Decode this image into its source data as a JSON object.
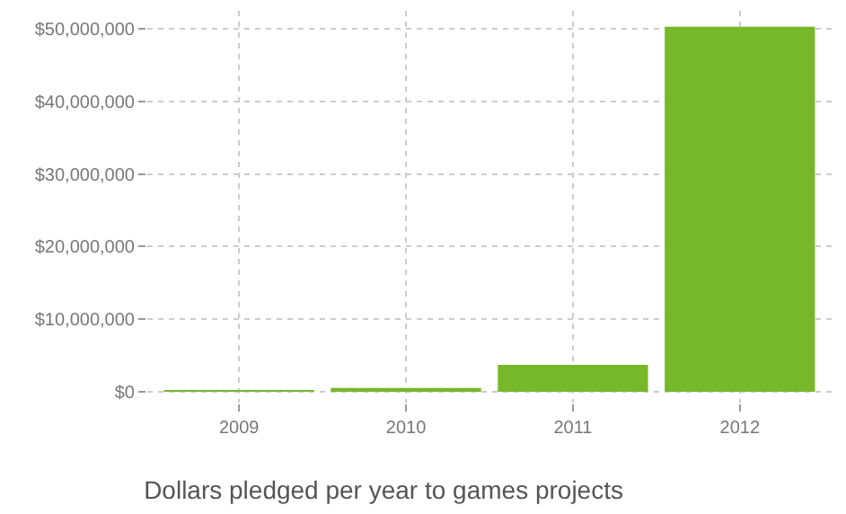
{
  "chart_data": {
    "type": "bar",
    "title": "Dollars pledged per year to games projects",
    "categories": [
      "2009",
      "2010",
      "2011",
      "2012"
    ],
    "values": [
      100000,
      500000,
      3700000,
      50300000
    ],
    "color": "#76b82a",
    "ylim": [
      -1500000,
      52500000
    ],
    "yticks": [
      {
        "value": 0,
        "label": "$0"
      },
      {
        "value": 10000000,
        "label": "$10,000,000"
      },
      {
        "value": 20000000,
        "label": "$20,000,000"
      },
      {
        "value": 30000000,
        "label": "$30,000,000"
      },
      {
        "value": 40000000,
        "label": "$40,000,000"
      },
      {
        "value": 50000000,
        "label": "$50,000,000"
      }
    ],
    "grid": true
  }
}
